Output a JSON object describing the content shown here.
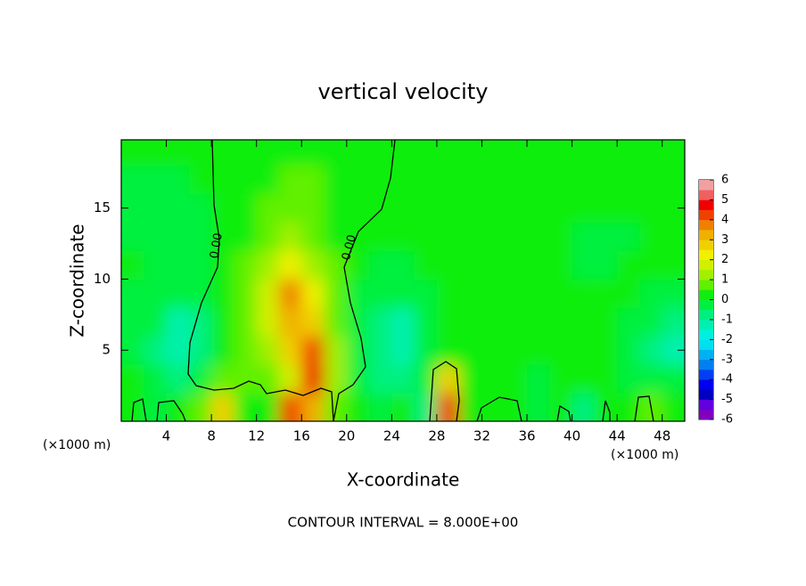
{
  "chart_data": {
    "type": "heatmap",
    "title": "vertical velocity",
    "x_label": "X-coordinate",
    "y_label": "Z-coordinate",
    "x_unit": "(×1000 m)",
    "footnote": "CONTOUR INTERVAL = 8.000E+00",
    "contour_labels": [
      "0.00",
      "0.00"
    ],
    "x": [
      1,
      3,
      5,
      7,
      9,
      11,
      13,
      15,
      17,
      19,
      21,
      23,
      25,
      27,
      29,
      31,
      33,
      35,
      37,
      39,
      41,
      43,
      45,
      47,
      49
    ],
    "y": [
      1,
      3,
      5,
      7,
      9,
      11,
      13,
      15,
      17,
      19
    ],
    "values": [
      [
        0.3,
        -0.5,
        0.2,
        0.5,
        2.5,
        0.3,
        0.2,
        4,
        3,
        0.5,
        0.2,
        -0.3,
        0,
        -0.8,
        4,
        0.2,
        0.3,
        0,
        -0.4,
        0.2,
        -0.6,
        0.2,
        0.3,
        0.8,
        0.1
      ],
      [
        0,
        -0.3,
        -0.6,
        -0.2,
        0.8,
        0.5,
        0.6,
        1.5,
        4.5,
        1.2,
        -0.3,
        -0.8,
        -0.8,
        -0.2,
        2.5,
        0.3,
        0,
        0.1,
        -0.1,
        0,
        0.2,
        0.1,
        -0.1,
        -0.3,
        -0.5
      ],
      [
        -0.2,
        -0.6,
        -1.5,
        -0.8,
        0.4,
        0.8,
        1.2,
        2.8,
        4.2,
        1,
        -0.3,
        -1,
        -1.4,
        -0.5,
        0.2,
        0.2,
        0.1,
        0,
        0.1,
        0.3,
        0.2,
        0.1,
        -0.2,
        -0.6,
        -1.2
      ],
      [
        -0.2,
        -0.5,
        -1.2,
        -0.6,
        0.3,
        0.8,
        1.5,
        3,
        2.5,
        0.8,
        -0.3,
        -0.8,
        -1.2,
        -0.4,
        0,
        0,
        0,
        0,
        0,
        0,
        0,
        0,
        -0.1,
        -0.4,
        -0.8
      ],
      [
        -0.1,
        -0.2,
        -0.5,
        -0.4,
        0.2,
        0.6,
        1.5,
        3.5,
        2,
        0.6,
        -0.1,
        -0.3,
        -0.4,
        -0.2,
        0,
        0,
        0,
        0,
        0,
        0,
        0,
        0,
        0,
        -0.2,
        -0.3
      ],
      [
        0,
        -0.2,
        -0.3,
        -0.2,
        0,
        0.5,
        1.2,
        2.2,
        1.2,
        0.5,
        0,
        -0.1,
        -0.1,
        0,
        0,
        0,
        0,
        0,
        0,
        0,
        -0.2,
        -0.2,
        0,
        0,
        0
      ],
      [
        -0.1,
        -0.2,
        -0.2,
        -0.1,
        0,
        0.4,
        0.8,
        1.2,
        0.9,
        0.4,
        0.1,
        0,
        0,
        0,
        0,
        0,
        0,
        0,
        0,
        0,
        -0.2,
        -0.3,
        -0.1,
        0,
        0
      ],
      [
        -0.2,
        -0.3,
        -0.2,
        -0.1,
        0,
        0.3,
        0.6,
        0.8,
        0.7,
        0.4,
        0.2,
        0,
        0,
        0,
        0,
        0,
        0,
        0,
        0,
        0,
        0,
        0,
        0,
        0,
        0
      ],
      [
        -0.1,
        -0.2,
        -0.1,
        0,
        0,
        0.2,
        0.4,
        0.5,
        0.5,
        0.3,
        0.1,
        0,
        0,
        0,
        0,
        0,
        0,
        0,
        0,
        0,
        0,
        0,
        0,
        0,
        0
      ],
      [
        0,
        0,
        0,
        0,
        0,
        0.1,
        0.2,
        0.2,
        0.2,
        0.1,
        0,
        0,
        0,
        0,
        0,
        0,
        0,
        0,
        0,
        0,
        0,
        0,
        0,
        0,
        0
      ]
    ],
    "xlim": [
      0,
      50
    ],
    "ylim": [
      0,
      19.8
    ],
    "xticks": [
      4,
      8,
      12,
      16,
      20,
      24,
      28,
      32,
      36,
      40,
      44,
      48
    ],
    "yticks": [
      5,
      10,
      15
    ],
    "colorbar": {
      "lim": [
        -6,
        6
      ],
      "ticks": [
        6,
        5,
        4,
        3,
        2,
        1,
        0,
        -1,
        -2,
        -3,
        -4,
        -5,
        -6
      ],
      "colors": [
        "#8000c0",
        "#6000e0",
        "#0000c0",
        "#0000f0",
        "#0040f0",
        "#0080f0",
        "#00b0f0",
        "#00e0f0",
        "#00f0e0",
        "#00f0b0",
        "#00f080",
        "#00f040",
        "#10ee10",
        "#60f000",
        "#a0f000",
        "#d0f000",
        "#f0f000",
        "#f0d000",
        "#f0b000",
        "#f08000",
        "#f04000",
        "#f00000",
        "#f06060",
        "#f0a0a0"
      ]
    }
  }
}
